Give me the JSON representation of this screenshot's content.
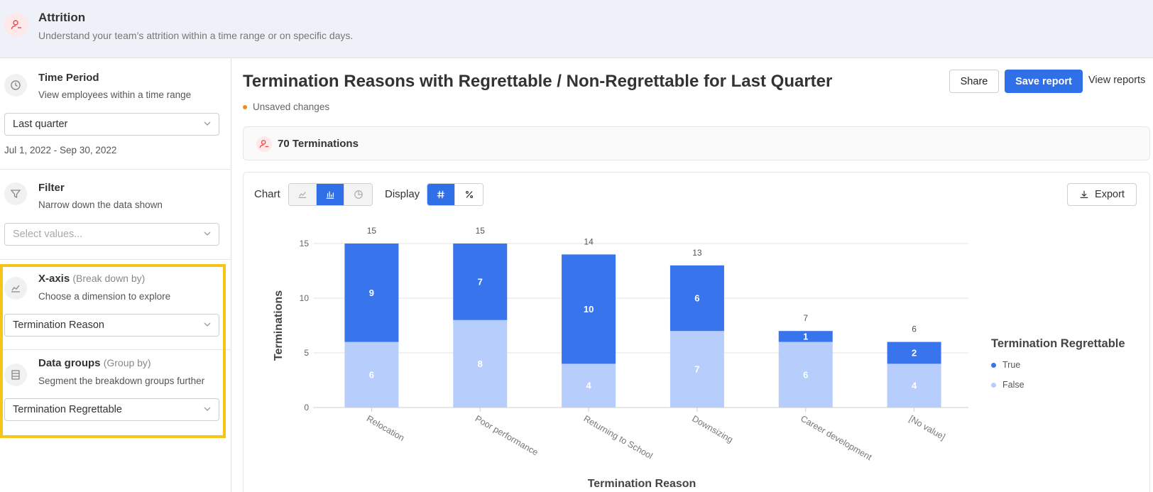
{
  "header": {
    "title": "Attrition",
    "subtitle": "Understand your team’s attrition within a time range or on specific days."
  },
  "sidebar": {
    "time_period": {
      "title": "Time Period",
      "description": "View employees within a time range",
      "selected": "Last quarter",
      "date_range": "Jul 1, 2022 - Sep 30, 2022"
    },
    "filter": {
      "title": "Filter",
      "description": "Narrow down the data shown",
      "placeholder": "Select values..."
    },
    "x_axis": {
      "title": "X-axis",
      "hint": "(Break down by)",
      "description": "Choose a dimension to explore",
      "selected": "Termination Reason"
    },
    "data_groups": {
      "title": "Data groups",
      "hint": "(Group by)",
      "description": "Segment the breakdown groups further",
      "selected": "Termination Regrettable"
    }
  },
  "main": {
    "title": "Termination Reasons with Regrettable / Non-Regrettable for Last Quarter",
    "unsaved": "Unsaved changes",
    "share_label": "Share",
    "save_label": "Save report",
    "view_reports_label": "View reports",
    "summary": "70 Terminations",
    "toolbar": {
      "chart_label": "Chart",
      "display_label": "Display",
      "export_label": "Export"
    }
  },
  "colors": {
    "primary": "#2f6fe8",
    "bar_true": "#3874ec",
    "bar_false": "#b7cdfb",
    "highlight": "#f5c518",
    "danger": "#e5484d"
  },
  "chart_data": {
    "type": "bar",
    "stacked": true,
    "categories": [
      "Relocation",
      "Poor performance",
      "Returning to School",
      "Downsizing",
      "Career development",
      "[No value]"
    ],
    "series": [
      {
        "name": "False",
        "values": [
          6,
          8,
          4,
          7,
          6,
          4
        ],
        "color": "#b7cdfb"
      },
      {
        "name": "True",
        "values": [
          9,
          7,
          10,
          6,
          1,
          2
        ],
        "color": "#3874ec"
      }
    ],
    "totals": [
      15,
      15,
      14,
      13,
      7,
      6
    ],
    "xlabel": "Termination Reason",
    "ylabel": "Terminations",
    "ylim": [
      0,
      15
    ],
    "yticks": [
      0,
      5,
      10,
      15
    ],
    "legend_title": "Termination Regrettable",
    "legend_position": "right",
    "grid": true
  }
}
